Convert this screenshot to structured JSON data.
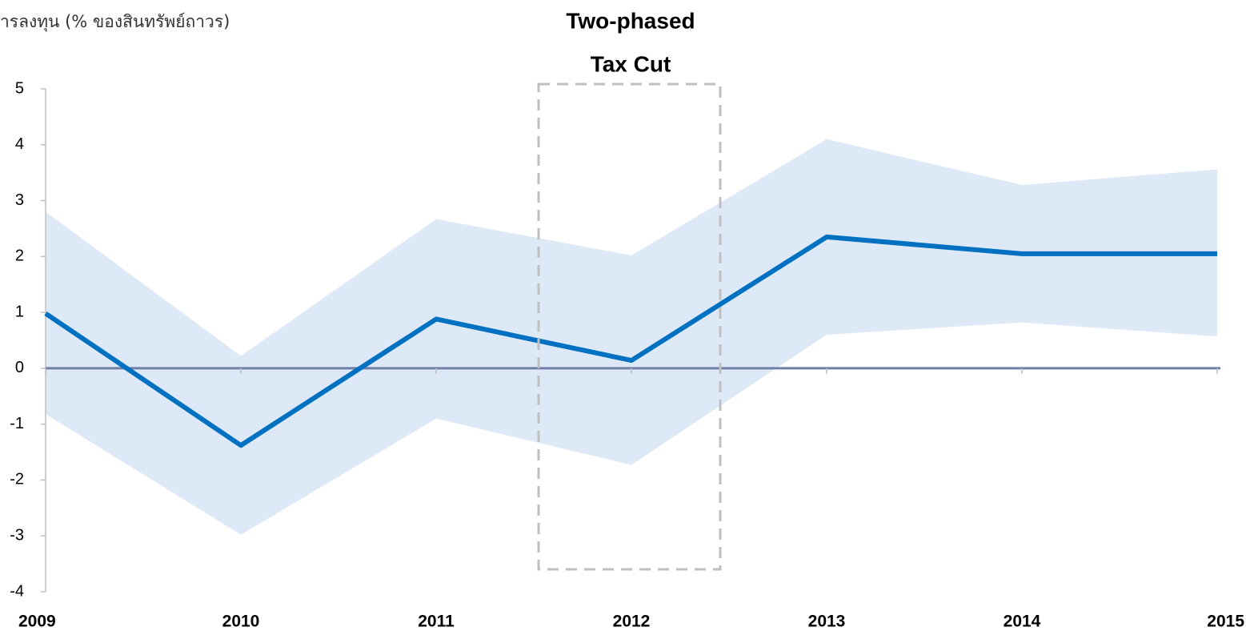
{
  "chart_data": {
    "type": "line",
    "title": "ารลงทุน (% ของสินทรัพย์ถาวร)",
    "annotation": [
      "Two-phased",
      "Tax Cut"
    ],
    "categories": [
      "2009",
      "2010",
      "2011",
      "2012",
      "2013",
      "2014",
      "2015"
    ],
    "series": [
      {
        "color": "#0070c0",
        "values": [
          0.98,
          -1.38,
          0.88,
          0.14,
          2.35,
          2.05,
          2.05
        ]
      }
    ],
    "band": {
      "color": "#dde9f6",
      "upper": [
        2.8,
        0.22,
        2.67,
        2.02,
        4.1,
        3.28,
        3.56
      ],
      "lower": [
        -0.82,
        -2.98,
        -0.9,
        -1.73,
        0.6,
        0.82,
        0.57
      ]
    },
    "ylim": [
      -4,
      5
    ],
    "yticks": [
      -4,
      -3,
      -2,
      -1,
      0,
      1,
      2,
      3,
      4,
      5
    ]
  }
}
